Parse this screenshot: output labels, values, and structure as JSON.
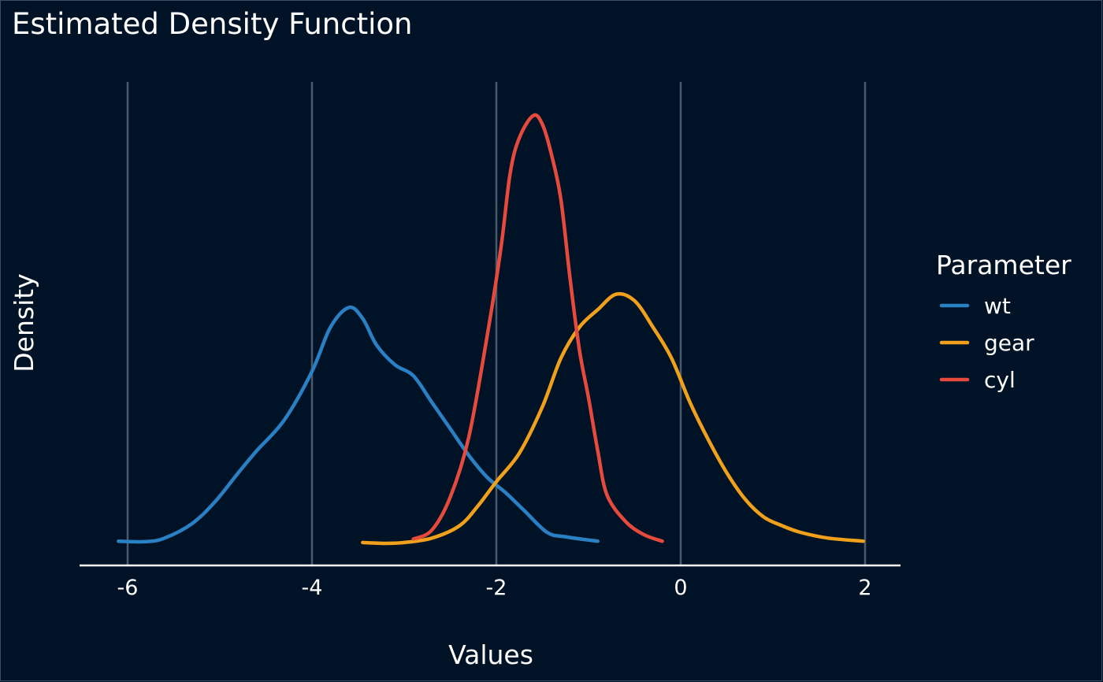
{
  "chart_data": {
    "type": "line",
    "title": "Estimated Density Function",
    "xlabel": "Values",
    "ylabel": "Density",
    "xlim": [
      -6.5,
      2.4
    ],
    "ylim": [
      0,
      1.0
    ],
    "x_ticks": [
      -6,
      -4,
      -2,
      0,
      2
    ],
    "x_tick_labels": [
      "-6",
      "-4",
      "-2",
      "0",
      "2"
    ],
    "grid": "vertical major gridlines",
    "legend": {
      "title": "Parameter",
      "position": "right"
    },
    "series": [
      {
        "name": "wt",
        "color": "#2a80c4",
        "x": [
          -6.1,
          -5.8,
          -5.6,
          -5.3,
          -5.05,
          -4.8,
          -4.6,
          -4.3,
          -4.0,
          -3.8,
          -3.6,
          -3.45,
          -3.3,
          -3.1,
          -2.9,
          -2.7,
          -2.5,
          -2.3,
          -2.1,
          -1.9,
          -1.7,
          -1.45,
          -1.25,
          -0.9
        ],
        "y": [
          0.005,
          0.004,
          0.012,
          0.045,
          0.095,
          0.16,
          0.21,
          0.28,
          0.39,
          0.49,
          0.535,
          0.51,
          0.45,
          0.405,
          0.38,
          0.32,
          0.26,
          0.2,
          0.15,
          0.115,
          0.075,
          0.025,
          0.015,
          0.005
        ]
      },
      {
        "name": "gear",
        "color": "#f0a01a",
        "x": [
          -3.45,
          -3.2,
          -3.0,
          -2.7,
          -2.4,
          -2.2,
          -2.0,
          -1.75,
          -1.5,
          -1.3,
          -1.1,
          -0.9,
          -0.7,
          -0.5,
          -0.3,
          -0.1,
          0.1,
          0.3,
          0.5,
          0.7,
          0.9,
          1.1,
          1.3,
          1.6,
          1.98
        ],
        "y": [
          0.002,
          0.0,
          0.002,
          0.012,
          0.04,
          0.085,
          0.14,
          0.205,
          0.31,
          0.42,
          0.49,
          0.53,
          0.565,
          0.55,
          0.49,
          0.42,
          0.32,
          0.235,
          0.16,
          0.1,
          0.06,
          0.04,
          0.025,
          0.012,
          0.005
        ]
      },
      {
        "name": "cyl",
        "color": "#e64a3c",
        "x": [
          -2.9,
          -2.7,
          -2.5,
          -2.3,
          -2.1,
          -1.95,
          -1.85,
          -1.75,
          -1.6,
          -1.5,
          -1.4,
          -1.3,
          -1.2,
          -1.1,
          -1.0,
          -0.9,
          -0.8,
          -0.6,
          -0.4,
          -0.2
        ],
        "y": [
          0.01,
          0.03,
          0.105,
          0.24,
          0.47,
          0.67,
          0.84,
          0.92,
          0.97,
          0.95,
          0.88,
          0.78,
          0.6,
          0.44,
          0.33,
          0.21,
          0.11,
          0.05,
          0.02,
          0.005
        ]
      }
    ]
  }
}
